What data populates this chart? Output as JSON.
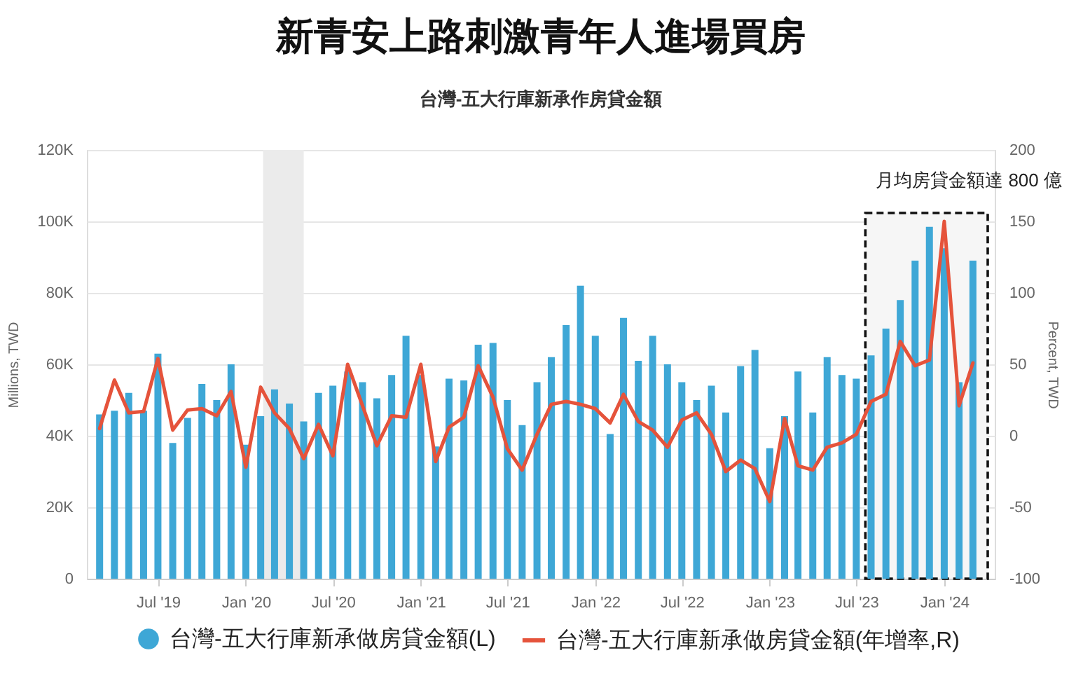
{
  "chart_data": {
    "type": "bar",
    "title": "新青安上路刺激青年人進場買房",
    "subtitle": "台灣-五大行庫新承作房貸金額",
    "ylabel": "Millions, TWD",
    "y2label": "Percent, TWD",
    "x": [
      "2019-03",
      "2019-04",
      "2019-05",
      "2019-06",
      "2019-07",
      "2019-08",
      "2019-09",
      "2019-10",
      "2019-11",
      "2019-12",
      "2020-01",
      "2020-02",
      "2020-03",
      "2020-04",
      "2020-05",
      "2020-06",
      "2020-07",
      "2020-08",
      "2020-09",
      "2020-10",
      "2020-11",
      "2020-12",
      "2021-01",
      "2021-02",
      "2021-03",
      "2021-04",
      "2021-05",
      "2021-06",
      "2021-07",
      "2021-08",
      "2021-09",
      "2021-10",
      "2021-11",
      "2021-12",
      "2022-01",
      "2022-02",
      "2022-03",
      "2022-04",
      "2022-05",
      "2022-06",
      "2022-07",
      "2022-08",
      "2022-09",
      "2022-10",
      "2022-11",
      "2022-12",
      "2023-01",
      "2023-02",
      "2023-03",
      "2023-04",
      "2023-05",
      "2023-06",
      "2023-07",
      "2023-08",
      "2023-09",
      "2023-10",
      "2023-11",
      "2023-12",
      "2024-01",
      "2024-02",
      "2024-03"
    ],
    "xlim": [
      "2019-02-17",
      "2024-04-01"
    ],
    "xticks": [
      {
        "value": "2019-07",
        "label": "Jul '19"
      },
      {
        "value": "2020-01",
        "label": "Jan '20"
      },
      {
        "value": "2020-07",
        "label": "Jul '20"
      },
      {
        "value": "2021-01",
        "label": "Jan '21"
      },
      {
        "value": "2021-07",
        "label": "Jul '21"
      },
      {
        "value": "2022-01",
        "label": "Jan '22"
      },
      {
        "value": "2022-07",
        "label": "Jul '22"
      },
      {
        "value": "2023-01",
        "label": "Jan '23"
      },
      {
        "value": "2023-07",
        "label": "Jul '23"
      },
      {
        "value": "2024-01",
        "label": "Jan '24"
      }
    ],
    "ylim": [
      0,
      120000
    ],
    "yticks": [
      0,
      {
        "value": 20000,
        "label": "20K"
      },
      {
        "value": 40000,
        "label": "40K"
      },
      {
        "value": 60000,
        "label": "60K"
      },
      {
        "value": 80000,
        "label": "80K"
      },
      {
        "value": 100000,
        "label": "100K"
      },
      {
        "value": 120000,
        "label": "120K"
      }
    ],
    "y2lim": [
      -100,
      200
    ],
    "y2ticks": [
      -100,
      -50,
      0,
      50,
      100,
      150,
      200
    ],
    "series": [
      {
        "name": "台灣-五大行庫新承做房貸金額(L)",
        "color": "#3ea7d6",
        "values": [
          46000,
          47000,
          52000,
          47000,
          63000,
          38000,
          45000,
          54500,
          50000,
          60000,
          37500,
          45500,
          53000,
          49000,
          44000,
          52000,
          54000,
          58000,
          55000,
          50500,
          57000,
          68000,
          57000,
          37000,
          56000,
          55500,
          65500,
          66000,
          50000,
          43000,
          55000,
          62000,
          71000,
          82000,
          68000,
          40500,
          73000,
          61000,
          68000,
          60000,
          55000,
          50000,
          54000,
          46500,
          59500,
          64000,
          36500,
          45500,
          58000,
          46500,
          62000,
          57000,
          56000,
          62500,
          70000,
          78000,
          89000,
          98500,
          92500,
          55000,
          89000
        ]
      },
      {
        "name": "台灣-五大行庫新承做房貸金額(年增率,R)",
        "type": "line",
        "axis": "y2",
        "color": "#e5533b",
        "values": [
          5,
          39,
          16,
          17,
          54,
          4,
          18,
          19,
          14,
          31,
          -22,
          34,
          16,
          5,
          -16,
          8,
          -14,
          50,
          21,
          -7,
          14,
          13,
          50,
          -18,
          6,
          13,
          49,
          27,
          -9,
          -24,
          1,
          22,
          24,
          22,
          19,
          9,
          29,
          10,
          4,
          -8,
          11,
          16,
          1,
          -25,
          -17,
          -23,
          -46,
          12,
          -21,
          -24,
          -8,
          -5,
          1,
          24,
          29,
          66,
          49,
          53,
          150,
          21,
          51
        ]
      }
    ],
    "bands": [
      {
        "axis": "x",
        "from": "2020-02-06",
        "to": "2020-05-01",
        "color": "#ebebeb"
      },
      {
        "axis": "x",
        "from": "2023-07-20",
        "to": "2024-04-01",
        "label": "月均房貸金額達 800 億",
        "color": "#f6f6f6"
      }
    ],
    "grid": "y",
    "legend": "bottom"
  }
}
